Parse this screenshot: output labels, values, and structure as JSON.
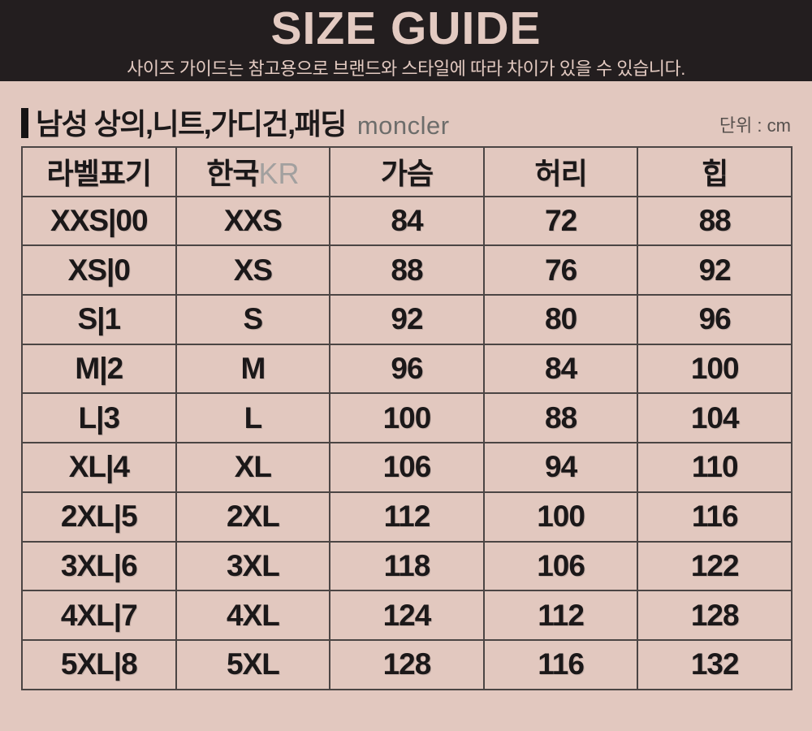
{
  "colors": {
    "background": "#e2c8bf",
    "banner_background": "#231e1f",
    "banner_text": "#e3cac1",
    "table_border": "#4b4544",
    "text_dark": "#1b1819",
    "gray_text": "#6d6d6b"
  },
  "banner": {
    "title": "SIZE GUIDE",
    "subtitle": "사이즈 가이드는 참고용으로 브랜드와 스타일에 따라 차이가 있을 수 있습니다."
  },
  "section": {
    "title": "남성 상의,니트,가디건,패딩",
    "brand": "moncler",
    "unit": "단위 : cm"
  },
  "table": {
    "columns": [
      "라벨표기",
      "한국",
      "가슴",
      "허리",
      "힙"
    ],
    "kr_suffix": "KR",
    "rows": [
      [
        "XXS|00",
        "XXS",
        "84",
        "72",
        "88"
      ],
      [
        "XS|0",
        "XS",
        "88",
        "76",
        "92"
      ],
      [
        "S|1",
        "S",
        "92",
        "80",
        "96"
      ],
      [
        "M|2",
        "M",
        "96",
        "84",
        "100"
      ],
      [
        "L|3",
        "L",
        "100",
        "88",
        "104"
      ],
      [
        "XL|4",
        "XL",
        "106",
        "94",
        "110"
      ],
      [
        "2XL|5",
        "2XL",
        "112",
        "100",
        "116"
      ],
      [
        "3XL|6",
        "3XL",
        "118",
        "106",
        "122"
      ],
      [
        "4XL|7",
        "4XL",
        "124",
        "112",
        "128"
      ],
      [
        "5XL|8",
        "5XL",
        "128",
        "116",
        "132"
      ]
    ]
  }
}
